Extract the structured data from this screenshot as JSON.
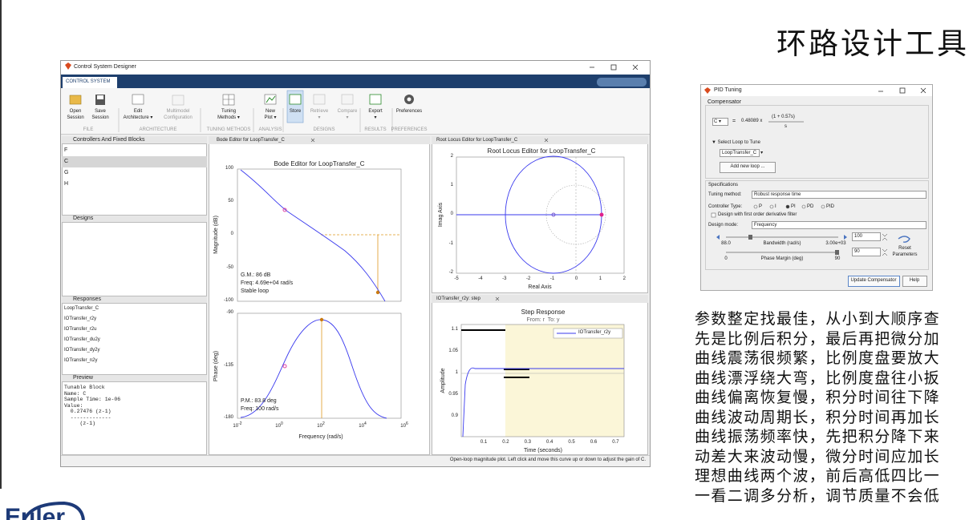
{
  "slide": {
    "title": "环路设计工具",
    "logo": "Euler",
    "verse": [
      "参数整定找最佳，从小到大顺序查",
      "先是比例后积分，最后再把微分加",
      "曲线震荡很频繁，比例度盘要放大",
      "曲线漂浮绕大弯，比例度盘往小扳",
      "曲线偏离恢复慢，积分时间往下降",
      "曲线波动周期长，积分时间再加长",
      "曲线振荡频率快，先把积分降下来",
      "动差大来波动慢，微分时间应加长",
      "理想曲线两个波，前后高低四比一",
      "一看二调多分析，调节质量不会低"
    ]
  },
  "window": {
    "title": "Control System Designer",
    "tab": "CONTROL SYSTEM",
    "buttons": [
      [
        "Open",
        "Session"
      ],
      [
        "Save",
        "Session"
      ],
      [
        "Edit",
        "Architecture ▾"
      ],
      [
        "Multimodel",
        "Configuration"
      ],
      [
        "Tuning",
        "Methods ▾"
      ],
      [
        "New",
        "Plot ▾"
      ],
      [
        "Store"
      ],
      [
        "Retrieve",
        "▾"
      ],
      [
        "Compare",
        "▾"
      ],
      [
        "Export",
        "▾"
      ],
      [
        "Preferences"
      ]
    ],
    "sections": [
      "FILE",
      "ARCHITECTURE",
      "TUNING METHODS",
      "ANALYSIS",
      "DESIGNS",
      "RESULTS",
      "PREFERENCES"
    ],
    "controllers": {
      "header": "Controllers And Fixed Blocks",
      "items": [
        "F",
        "C",
        "G",
        "H"
      ]
    },
    "designs": {
      "header": "Designs"
    },
    "responses": {
      "header": "Responses",
      "items": [
        "LoopTransfer_C",
        "IOTransfer_r2y",
        "IOTransfer_r2u",
        "IOTransfer_du2y",
        "IOTransfer_dy2y",
        "IOTransfer_n2y"
      ]
    },
    "preview": {
      "header": "Preview",
      "lines": [
        "Tunable Block",
        "Name: C",
        "Sample Time: 1e-06",
        "Value:",
        "  0.27476 (z-1)",
        "  -------------",
        "     (z-1)"
      ]
    },
    "bode": {
      "tab": "Bode Editor for LoopTransfer_C",
      "title": "Bode Editor for LoopTransfer_C",
      "mag_label": "Magnitude (dB)",
      "mag_ticks": [
        100,
        50,
        0,
        -50,
        -100
      ],
      "phase_label": "Phase (deg)",
      "phase_ticks": [
        -90,
        -135,
        -180
      ],
      "freq_ticks": [
        {
          "base": "10",
          "exp": "-2"
        },
        {
          "base": "10",
          "exp": "0"
        },
        {
          "base": "10",
          "exp": "2"
        },
        {
          "base": "10",
          "exp": "4"
        },
        {
          "base": "10",
          "exp": "6"
        }
      ],
      "x_label": "Frequency (rad/s)",
      "gm": [
        "G.M.: 86 dB",
        "Freq: 4.69e+04 rad/s",
        "Stable loop"
      ],
      "pm": [
        "P.M.: 83.8 deg",
        "Freq: 100 rad/s"
      ]
    },
    "rlocus": {
      "tab": "Root Locus Editor for LoopTransfer_C",
      "title": "Root Locus Editor for LoopTransfer_C",
      "x_label": "Real Axis",
      "y_label": "Imag Axis",
      "xticks": [
        -5,
        -4,
        -3,
        -2,
        -1,
        0,
        1,
        2
      ],
      "yticks": [
        2,
        1,
        0,
        -1,
        -2
      ]
    },
    "step": {
      "tab": "IOTransfer_r2y: step",
      "title": "Step Response",
      "subtitle": "From: r  To: y",
      "x_label": "Time (seconds)",
      "y_label": "Amplitude",
      "legend": "IOTransfer_r2y",
      "xticks": [
        0.1,
        0.2,
        0.3,
        0.4,
        0.5,
        0.6,
        0.7
      ],
      "yticks": [
        1.1,
        1.05,
        1,
        0.95,
        0.9
      ]
    },
    "status": "Open-loop magnitude plot. Left click and move this curve up or down to adjust the gain of C."
  },
  "pid": {
    "title": "PID Tuning",
    "compensator": "Compensator",
    "block": "C ▾",
    "equals": "=",
    "gain": "0.48089 x",
    "numerator": "(1 + 0.57s)",
    "denominator": "s",
    "select_loop": "▼ Select Loop to Tune",
    "loop": "LoopTransfer_C   ▾",
    "add_loop": "Add new loop ...",
    "specifications": "Specifications",
    "method_label": "Tuning method:",
    "method": "Robust response time",
    "type_label": "Controller Type:",
    "types": [
      "P",
      "I",
      "PI",
      "PD",
      "PID"
    ],
    "filter": "Design with first order derivative filter",
    "mode_label": "Design mode:",
    "mode": "Frequency",
    "bandwidth": {
      "value": "100",
      "min": "88.0",
      "label": "Bandwidth (rad/s)",
      "max": "3.00e+03"
    },
    "phase": {
      "value": "90",
      "min": "0",
      "label": "Phase Margin (deg)",
      "max": "90"
    },
    "reset": [
      "Reset",
      "Parameters"
    ],
    "update": "Update Compensator",
    "help": "Help"
  }
}
